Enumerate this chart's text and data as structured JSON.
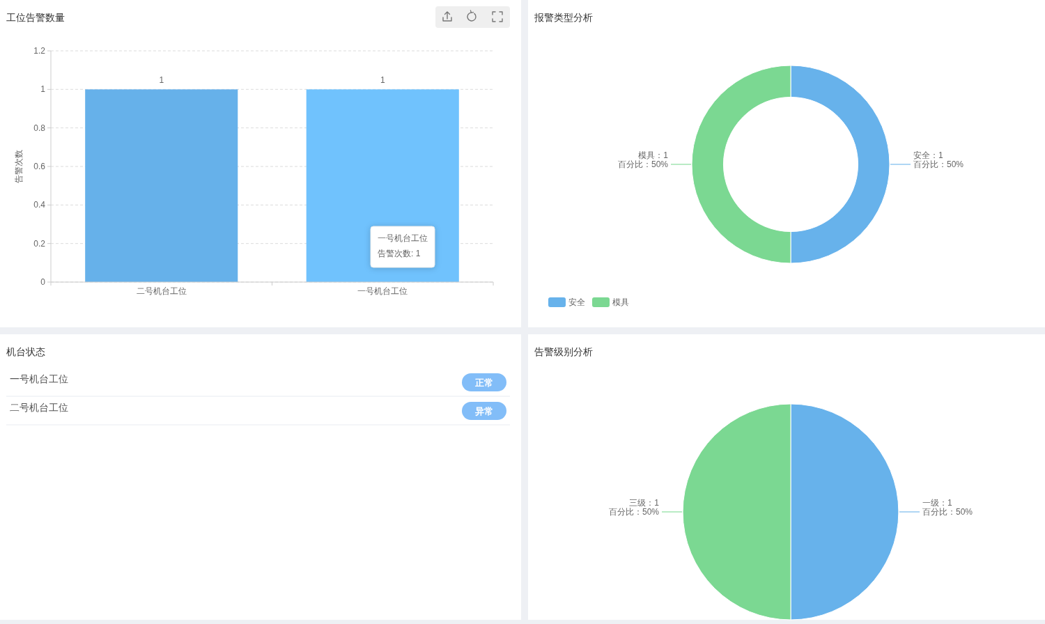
{
  "chart_data": [
    {
      "type": "bar",
      "title": "工位告警数量",
      "ylabel": "告警次数",
      "categories": [
        "二号机台工位",
        "一号机台工位"
      ],
      "values": [
        1,
        1
      ],
      "colors": [
        "#66b1ea",
        "#70c2fd"
      ],
      "ylim": [
        0,
        1.2
      ],
      "yticks": [
        0,
        0.2,
        0.4,
        0.6,
        0.8,
        1,
        1.2
      ],
      "grid": "y",
      "data_labels": true,
      "annotations": [
        "一号机台工位",
        "告警次数: 1"
      ]
    },
    {
      "type": "donut",
      "title": "报警类型分析",
      "categories": [
        "安全",
        "模具"
      ],
      "values": [
        1,
        1
      ],
      "colors": [
        "#67b2eb",
        "#7bd892"
      ],
      "value_labels": [
        "安全：1\n百分比：50%",
        "模具：1\n百分比：50%"
      ],
      "legend": "bottom left"
    },
    {
      "type": "other",
      "title": "机台状态",
      "categories": [
        "一号机台工位",
        "二号机台工位"
      ],
      "value_labels": [
        "正常",
        "异常"
      ],
      "color": "#82bdf8"
    },
    {
      "type": "pie",
      "title": "告警级别分析",
      "categories": [
        null,
        null
      ],
      "values": [
        1,
        1
      ],
      "colors": [
        "#67b2eb",
        "#7bd892"
      ],
      "value_labels": [
        "一级：1\n百分比：50%",
        "三级：1\n百分比：50%"
      ]
    }
  ]
}
